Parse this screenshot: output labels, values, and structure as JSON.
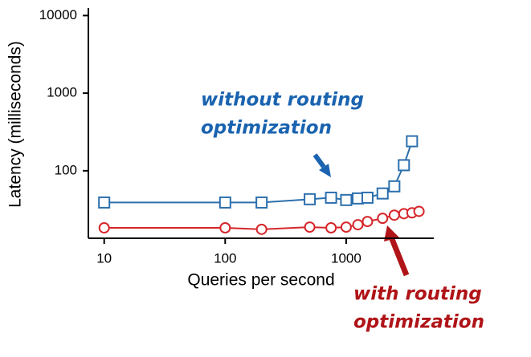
{
  "chart_data": {
    "type": "line",
    "x_label": "Queries per second",
    "y_label": "Latency (milliseconds)",
    "x": [
      10,
      100,
      200,
      500,
      750,
      1000,
      1250,
      1500,
      2000,
      2500,
      3000,
      3500,
      4000
    ],
    "series": [
      {
        "name": "without routing optimization",
        "color": "#2c6fad",
        "marker": "square",
        "values": [
          39,
          39,
          39,
          43,
          45,
          42,
          44,
          45,
          51,
          63,
          118,
          240,
          null
        ]
      },
      {
        "name": "with routing optimization",
        "color": "#d6262b",
        "marker": "circle",
        "values": [
          18.4,
          18.4,
          17.6,
          18.8,
          18.4,
          18.8,
          20.2,
          22.2,
          24.4,
          26.8,
          28,
          28.7,
          30
        ]
      }
    ],
    "xscale": "log",
    "yscale": "log",
    "xlim": [
      7.4,
      5300
    ],
    "ylim": [
      13.5,
      12500
    ],
    "xticks": [
      10,
      100,
      1000
    ],
    "yticks": [
      100,
      1000,
      10000
    ],
    "annotations": [
      {
        "text": [
          "without routing",
          "optimization"
        ],
        "color": "#1a63b0"
      },
      {
        "text": [
          "with routing",
          "optimization"
        ],
        "color": "#b01418"
      }
    ]
  }
}
